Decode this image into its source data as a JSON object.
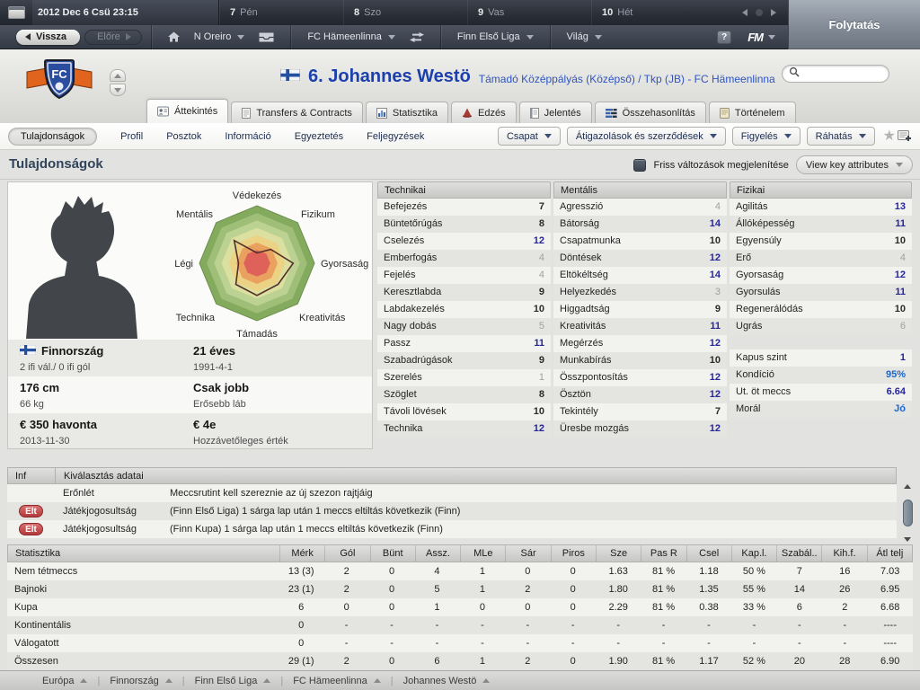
{
  "top_bar": {
    "datetime": "2012 Dec 6 Csü 23:15",
    "days": [
      {
        "num": "7",
        "name": "Pén"
      },
      {
        "num": "8",
        "name": "Szo"
      },
      {
        "num": "9",
        "name": "Vas"
      },
      {
        "num": "10",
        "name": "Hét"
      }
    ],
    "continue_label": "Folytatás"
  },
  "nav_bar": {
    "back_label": "Vissza",
    "forward_label": "Előre",
    "manager_name": "N Oreiro",
    "club_name": "FC Hämeenlinna",
    "league_name": "Finn Első Liga",
    "world_label": "Világ",
    "help_label": "?",
    "fm_label": "FM"
  },
  "header": {
    "player_name": "6. Johannes Westö",
    "position_club": "Támadó Középpályás (Középső) / Tkp (JB) - FC Hämeenlinna"
  },
  "tabs": [
    {
      "label": "Áttekintés",
      "icon": "overview-icon",
      "active": true
    },
    {
      "label": "Transfers & Contracts",
      "icon": "document-icon",
      "active": false
    },
    {
      "label": "Statisztika",
      "icon": "stats-icon",
      "active": false
    },
    {
      "label": "Edzés",
      "icon": "training-icon",
      "active": false
    },
    {
      "label": "Jelentés",
      "icon": "report-icon",
      "active": false
    },
    {
      "label": "Összehasonlítás",
      "icon": "compare-icon",
      "active": false
    },
    {
      "label": "Történelem",
      "icon": "history-icon",
      "active": false
    }
  ],
  "subnav": {
    "selected": "Tulajdonságok",
    "links": [
      "Profil",
      "Posztok",
      "Információ",
      "Egyeztetés",
      "Feljegyzések"
    ],
    "actions": [
      "Csapat",
      "Átigazolások és szerződések",
      "Figyelés",
      "Ráhatás"
    ]
  },
  "section": {
    "title": "Tulajdonságok",
    "fresh_changes_label": "Friss változások megjelenítése",
    "view_selector_label": "View key attributes"
  },
  "radar": {
    "labels": {
      "top": "Védekezés",
      "top_left": "Mentális",
      "top_right": "Fizikum",
      "left": "Légi",
      "right": "Gyorsaság",
      "bottom_left": "Technika",
      "bottom_right": "Kreativitás",
      "bottom": "Támadás"
    }
  },
  "details": [
    {
      "flag": true,
      "col1_main": "Finnország",
      "col1_sub": "2 ifi vál./ 0 ifi gól",
      "col2_main": "21 éves",
      "col2_sub": "1991-4-1"
    },
    {
      "flag": false,
      "col1_main": "176 cm",
      "col1_sub": "66 kg",
      "col2_main": "Csak jobb",
      "col2_sub": "Erősebb láb"
    },
    {
      "flag": false,
      "col1_main": "€ 350 havonta",
      "col1_sub": "2013-11-30",
      "col2_main": "€ 4e",
      "col2_sub": "Hozzávetőleges érték"
    }
  ],
  "attributes": {
    "technical": {
      "title": "Technikai",
      "rows": [
        [
          "Befejezés",
          7
        ],
        [
          "Büntetőrúgás",
          8
        ],
        [
          "Cselezés",
          12
        ],
        [
          "Emberfogás",
          4
        ],
        [
          "Fejelés",
          4
        ],
        [
          "Keresztlabda",
          9
        ],
        [
          "Labdakezelés",
          10
        ],
        [
          "Nagy dobás",
          5
        ],
        [
          "Passz",
          11
        ],
        [
          "Szabadrúgások",
          9
        ],
        [
          "Szerelés",
          1
        ],
        [
          "Szöglet",
          8
        ],
        [
          "Távoli lövések",
          10
        ],
        [
          "Technika",
          12
        ]
      ]
    },
    "mental": {
      "title": "Mentális",
      "rows": [
        [
          "Agresszió",
          4
        ],
        [
          "Bátorság",
          14
        ],
        [
          "Csapatmunka",
          10
        ],
        [
          "Döntések",
          12
        ],
        [
          "Eltökéltség",
          14
        ],
        [
          "Helyezkedés",
          3
        ],
        [
          "Higgadtság",
          9
        ],
        [
          "Kreativitás",
          11
        ],
        [
          "Megérzés",
          12
        ],
        [
          "Munkabírás",
          10
        ],
        [
          "Összpontosítás",
          12
        ],
        [
          "Ösztön",
          12
        ],
        [
          "Tekintély",
          7
        ],
        [
          "Üresbe mozgás",
          12
        ]
      ]
    },
    "physical": {
      "title": "Fizikai",
      "rows": [
        [
          "Agilitás",
          13
        ],
        [
          "Állóképesség",
          11
        ],
        [
          "Egyensúly",
          10
        ],
        [
          "Erő",
          4
        ],
        [
          "Gyorsaság",
          12
        ],
        [
          "Gyorsulás",
          11
        ],
        [
          "Regenerálódás",
          10
        ],
        [
          "Ugrás",
          6
        ]
      ]
    },
    "status_rows": [
      {
        "label": "Kapus szint",
        "value": "1",
        "tone": "navy"
      },
      {
        "label": "Kondíció",
        "value": "95%",
        "tone": "bright"
      },
      {
        "label": "Ut. öt meccs",
        "value": "6.64",
        "tone": "navy"
      },
      {
        "label": "Morál",
        "value": "Jó",
        "tone": "bright"
      }
    ]
  },
  "info_panel": {
    "col_info": "Inf",
    "col_selection": "Kiválasztás adatai",
    "rows": [
      {
        "badge": "",
        "label": "Erőnlét",
        "text": "Meccsrutint kell szereznie az új szezon rajtjáig"
      },
      {
        "badge": "Elt",
        "label": "Játékjogosultság",
        "text": "(Finn Első Liga) 1 sárga lap után 1 meccs eltiltás következik (Finn)"
      },
      {
        "badge": "Elt",
        "label": "Játékjogosultság",
        "text": "(Finn Kupa) 1 sárga lap után 1 meccs eltiltás következik (Finn)"
      }
    ]
  },
  "stats_table": {
    "headers": [
      "Statisztika",
      "Mérk",
      "Gól",
      "Bünt",
      "Assz.",
      "MLe",
      "Sár",
      "Piros",
      "Sze",
      "Pas R",
      "Csel",
      "Kap.l.",
      "Szabál..",
      "Kih.f.",
      "Átl telj"
    ],
    "rows": [
      {
        "label": "Nem tétmeccs",
        "values": [
          "13 (3)",
          "2",
          "0",
          "4",
          "1",
          "0",
          "0",
          "1.63",
          "81 %",
          "1.18",
          "50 %",
          "7",
          "16",
          "7.03"
        ]
      },
      {
        "label": "Bajnoki",
        "values": [
          "23 (1)",
          "2",
          "0",
          "5",
          "1",
          "2",
          "0",
          "1.80",
          "81 %",
          "1.35",
          "55 %",
          "14",
          "26",
          "6.95"
        ]
      },
      {
        "label": "Kupa",
        "values": [
          "6",
          "0",
          "0",
          "1",
          "0",
          "0",
          "0",
          "2.29",
          "81 %",
          "0.38",
          "33 %",
          "6",
          "2",
          "6.68"
        ]
      },
      {
        "label": "Kontinentális",
        "values": [
          "0",
          "-",
          "-",
          "-",
          "-",
          "-",
          "-",
          "-",
          "-",
          "-",
          "-",
          "-",
          "-",
          "----"
        ]
      },
      {
        "label": "Válogatott",
        "values": [
          "0",
          "-",
          "-",
          "-",
          "-",
          "-",
          "-",
          "-",
          "-",
          "-",
          "-",
          "-",
          "-",
          "----"
        ]
      },
      {
        "label": "Összesen",
        "values": [
          "29 (1)",
          "2",
          "0",
          "6",
          "1",
          "2",
          "0",
          "1.90",
          "81 %",
          "1.17",
          "52 %",
          "20",
          "28",
          "6.90"
        ]
      }
    ]
  },
  "bottom_bar": {
    "items": [
      "Európa",
      "Finnország",
      "Finn Első Liga",
      "FC Hämeenlinna",
      "Johannes Westö"
    ]
  },
  "colors": {
    "attr_high": "#26269a",
    "attr_mid": "#2b2b2b",
    "attr_low": "#a0a0a0",
    "bright_blue": "#1b66cc",
    "player_name_blue": "#1c3fae",
    "badge_red": "#b23a3c"
  }
}
